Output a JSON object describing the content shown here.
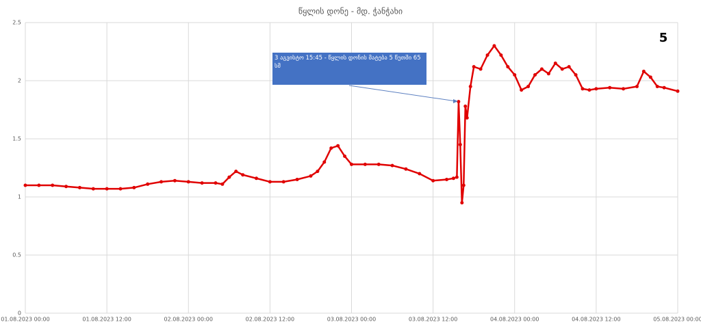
{
  "chart_data": {
    "type": "line",
    "title": "წყლის დონე - მდ. ჭანჭახი",
    "corner_label": "5",
    "annotation": "3 აგვისტო  15:45 - წყლის დონის მატება 5 წუთში 65 სმ",
    "color": "#e00000",
    "grid": true,
    "x": [
      "01.08.2023 00:00",
      "01.08.2023 02:00",
      "01.08.2023 04:00",
      "01.08.2023 06:00",
      "01.08.2023 08:00",
      "01.08.2023 10:00",
      "01.08.2023 12:00",
      "01.08.2023 14:00",
      "01.08.2023 16:00",
      "01.08.2023 18:00",
      "01.08.2023 20:00",
      "01.08.2023 22:00",
      "02.08.2023 00:00",
      "02.08.2023 02:00",
      "02.08.2023 04:00",
      "02.08.2023 05:00",
      "02.08.2023 06:00",
      "02.08.2023 07:00",
      "02.08.2023 08:00",
      "02.08.2023 10:00",
      "02.08.2023 12:00",
      "02.08.2023 14:00",
      "02.08.2023 16:00",
      "02.08.2023 18:00",
      "02.08.2023 19:00",
      "02.08.2023 20:00",
      "02.08.2023 21:00",
      "02.08.2023 22:00",
      "02.08.2023 23:00",
      "03.08.2023 00:00",
      "03.08.2023 02:00",
      "03.08.2023 04:00",
      "03.08.2023 06:00",
      "03.08.2023 08:00",
      "03.08.2023 10:00",
      "03.08.2023 12:00",
      "03.08.2023 14:00",
      "03.08.2023 15:00",
      "03.08.2023 15:30",
      "03.08.2023 15:45",
      "03.08.2023 16:00",
      "03.08.2023 16:15",
      "03.08.2023 16:30",
      "03.08.2023 16:45",
      "03.08.2023 17:00",
      "03.08.2023 17:30",
      "03.08.2023 18:00",
      "03.08.2023 19:00",
      "03.08.2023 20:00",
      "03.08.2023 21:00",
      "03.08.2023 22:00",
      "03.08.2023 23:00",
      "04.08.2023 00:00",
      "04.08.2023 01:00",
      "04.08.2023 02:00",
      "04.08.2023 03:00",
      "04.08.2023 04:00",
      "04.08.2023 05:00",
      "04.08.2023 06:00",
      "04.08.2023 07:00",
      "04.08.2023 08:00",
      "04.08.2023 09:00",
      "04.08.2023 10:00",
      "04.08.2023 11:00",
      "04.08.2023 12:00",
      "04.08.2023 14:00",
      "04.08.2023 16:00",
      "04.08.2023 18:00",
      "04.08.2023 19:00",
      "04.08.2023 20:00",
      "04.08.2023 21:00",
      "04.08.2023 22:00",
      "05.08.2023 00:00"
    ],
    "values": [
      1.1,
      1.1,
      1.1,
      1.09,
      1.08,
      1.07,
      1.07,
      1.07,
      1.08,
      1.11,
      1.13,
      1.14,
      1.13,
      1.12,
      1.12,
      1.11,
      1.17,
      1.22,
      1.19,
      1.16,
      1.13,
      1.13,
      1.15,
      1.18,
      1.22,
      1.3,
      1.42,
      1.44,
      1.35,
      1.28,
      1.28,
      1.28,
      1.27,
      1.24,
      1.2,
      1.14,
      1.15,
      1.16,
      1.17,
      1.82,
      1.45,
      0.95,
      1.1,
      1.78,
      1.68,
      1.95,
      2.12,
      2.1,
      2.22,
      2.3,
      2.22,
      2.12,
      2.05,
      1.92,
      1.95,
      2.05,
      2.1,
      2.06,
      2.15,
      2.1,
      2.12,
      2.05,
      1.93,
      1.92,
      1.93,
      1.94,
      1.93,
      1.95,
      2.08,
      2.03,
      1.95,
      1.94,
      1.91
    ],
    "xlim": [
      "01.08.2023 00:00",
      "05.08.2023 00:00"
    ],
    "xticks": [
      "01.08.2023 00:00",
      "01.08.2023 12:00",
      "02.08.2023 00:00",
      "02.08.2023 12:00",
      "03.08.2023 00:00",
      "03.08.2023 12:00",
      "04.08.2023 00:00",
      "04.08.2023 12:00",
      "05.08.2023 00:00"
    ],
    "ylim": [
      0,
      2.5
    ],
    "yticks": [
      0,
      0.5,
      1,
      1.5,
      2,
      2.5
    ]
  }
}
